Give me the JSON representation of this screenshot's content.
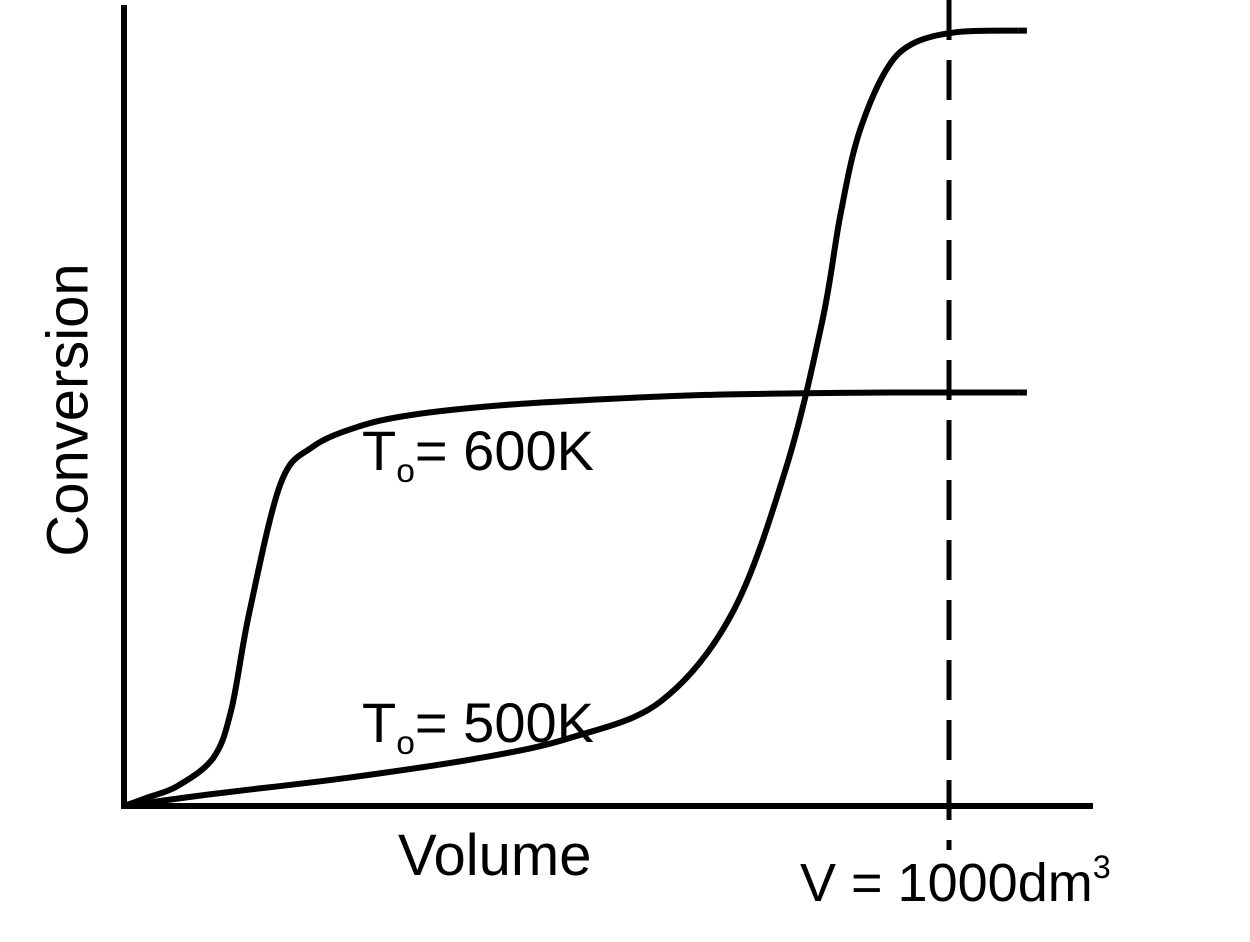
{
  "chart_data": {
    "type": "line",
    "title": "",
    "xlabel": "Volume",
    "ylabel": "Conversion",
    "xlim": [
      0,
      1180
    ],
    "ylim": [
      0,
      1.0
    ],
    "grid": false,
    "legend": "none",
    "series": [
      {
        "name": "600K",
        "label_prefix": "T",
        "label_sub": "o",
        "label_suffix": "= 600K",
        "x": [
          0,
          25,
          60,
          100,
          120,
          140,
          175,
          210,
          260,
          320,
          420,
          540,
          650,
          760,
          860,
          1000
        ],
        "y": [
          0,
          0.01,
          0.025,
          0.06,
          0.12,
          0.24,
          0.4,
          0.445,
          0.47,
          0.485,
          0.497,
          0.505,
          0.51,
          0.512,
          0.513,
          0.513
        ]
      },
      {
        "name": "500K",
        "label_prefix": "T",
        "label_sub": "o",
        "label_suffix": "= 500K",
        "x": [
          0,
          100,
          250,
          400,
          500,
          600,
          680,
          740,
          780,
          800,
          820,
          850,
          880,
          930,
          1000
        ],
        "y": [
          0,
          0.015,
          0.035,
          0.06,
          0.085,
          0.13,
          0.24,
          0.42,
          0.6,
          0.73,
          0.83,
          0.91,
          0.945,
          0.96,
          0.962
        ]
      }
    ],
    "annotations": [
      {
        "x": 1000,
        "style": "dashed",
        "label_text": "V = 1000dm",
        "label_sup": "3"
      }
    ],
    "colors": {
      "line": "#000000",
      "background": "#ffffff"
    }
  }
}
